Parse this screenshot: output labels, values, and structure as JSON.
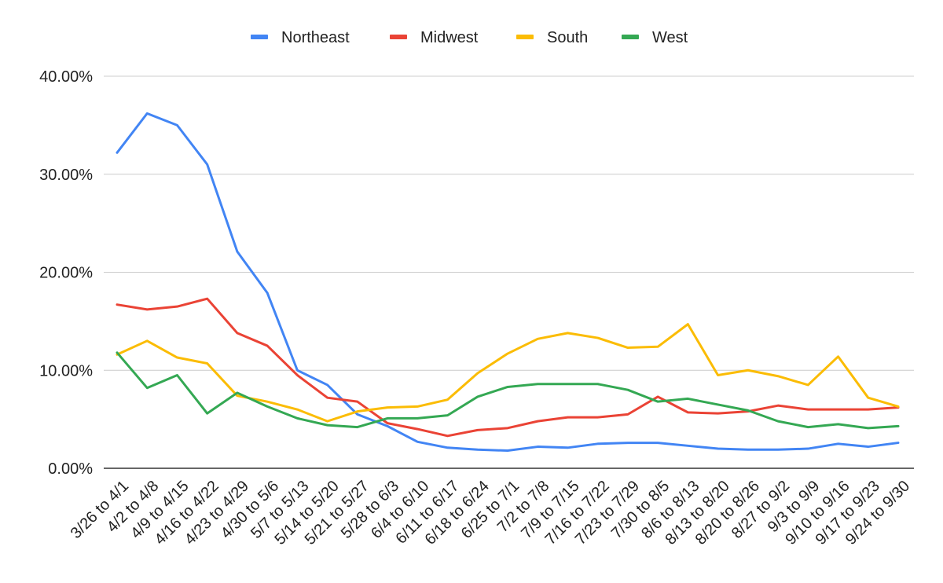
{
  "chart_data": {
    "type": "line",
    "title": "",
    "xlabel": "",
    "ylabel": "",
    "ylim": [
      0,
      40
    ],
    "y_ticks": [
      "0.00%",
      "10.00%",
      "20.00%",
      "30.00%",
      "40.00%"
    ],
    "grid": true,
    "legend_position": "top",
    "categories": [
      "3/26 to 4/1",
      "4/2 to 4/8",
      "4/9 to 4/15",
      "4/16 to 4/22",
      "4/23 to 4/29",
      "4/30 to 5/6",
      "5/7 to 5/13",
      "5/14 to 5/20",
      "5/21 to 5/27",
      "5/28 to 6/3",
      "6/4 to 6/10",
      "6/11 to 6/17",
      "6/18 to 6/24",
      "6/25 to 7/1",
      "7/2 to 7/8",
      "7/9 to 7/15",
      "7/16 to 7/22",
      "7/23 to 7/29",
      "7/30 to 8/5",
      "8/6 to 8/13",
      "8/13 to 8/20",
      "8/20 to 8/26",
      "8/27 to 9/2",
      "9/3 to 9/9",
      "9/10 to 9/16",
      "9/17 to 9/23",
      "9/24 to 9/30"
    ],
    "series": [
      {
        "name": "Northeast",
        "color": "#4285f4",
        "values": [
          32.2,
          36.2,
          35.0,
          31.0,
          22.1,
          17.9,
          10.0,
          8.5,
          5.5,
          4.3,
          2.7,
          2.1,
          1.9,
          1.8,
          2.2,
          2.1,
          2.5,
          2.6,
          2.6,
          2.3,
          2.0,
          1.9,
          1.9,
          2.0,
          2.5,
          2.2,
          2.6
        ]
      },
      {
        "name": "Midwest",
        "color": "#ea4335",
        "values": [
          16.7,
          16.2,
          16.5,
          17.3,
          13.8,
          12.5,
          9.5,
          7.2,
          6.8,
          4.6,
          4.0,
          3.3,
          3.9,
          4.1,
          4.8,
          5.2,
          5.2,
          5.5,
          7.3,
          5.7,
          5.6,
          5.8,
          6.4,
          6.0,
          6.0,
          6.0,
          6.2
        ]
      },
      {
        "name": "South",
        "color": "#fbbc04",
        "values": [
          11.6,
          13.0,
          11.3,
          10.7,
          7.4,
          6.8,
          6.0,
          4.8,
          5.8,
          6.2,
          6.3,
          7.0,
          9.7,
          11.7,
          13.2,
          13.8,
          13.3,
          12.3,
          12.4,
          14.7,
          9.5,
          10.0,
          9.4,
          8.5,
          11.4,
          7.2,
          6.3
        ]
      },
      {
        "name": "West",
        "color": "#34a853",
        "values": [
          11.8,
          8.2,
          9.5,
          5.6,
          7.7,
          6.3,
          5.1,
          4.4,
          4.2,
          5.1,
          5.1,
          5.4,
          7.3,
          8.3,
          8.6,
          8.6,
          8.6,
          8.0,
          6.8,
          7.1,
          6.5,
          5.9,
          4.8,
          4.2,
          4.5,
          4.1,
          4.3
        ]
      }
    ]
  }
}
